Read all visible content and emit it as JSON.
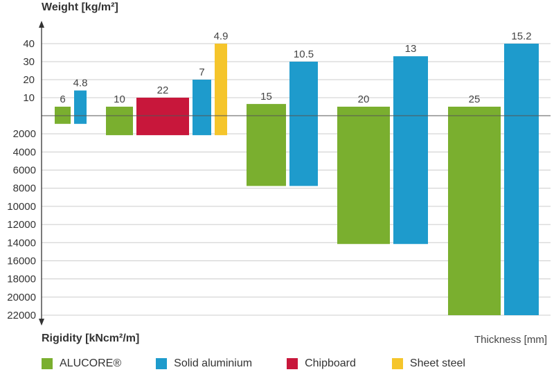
{
  "chart_data": {
    "type": "bar",
    "top_axis_label": "Weight [kg/m²]",
    "bottom_axis_label": "Rigidity [kNcm²/m]",
    "x_axis_label": "Thickness [mm]",
    "weight_ticks": [
      "10",
      "20",
      "30",
      "40"
    ],
    "rigidity_ticks": [
      "2000",
      "4000",
      "6000",
      "8000",
      "10000",
      "12000",
      "14000",
      "16000",
      "18000",
      "20000",
      "22000"
    ],
    "groups": [
      {
        "bars": [
          {
            "series": "ALUCORE®",
            "label": "6",
            "weight": 5,
            "rigidity": 900
          },
          {
            "series": "Solid aluminium",
            "label": "4.8",
            "weight": 14,
            "rigidity": 900
          }
        ]
      },
      {
        "bars": [
          {
            "series": "ALUCORE®",
            "label": "10",
            "weight": 5,
            "rigidity": 2150
          },
          {
            "series": "Chipboard",
            "label": "22",
            "weight": 10,
            "rigidity": 2150
          },
          {
            "series": "Solid aluminium",
            "label": "7",
            "weight": 20,
            "rigidity": 2150
          },
          {
            "series": "Sheet steel",
            "label": "4.9",
            "weight": 40,
            "rigidity": 2150
          }
        ]
      },
      {
        "bars": [
          {
            "series": "ALUCORE®",
            "label": "15",
            "weight": 6.5,
            "rigidity": 7750
          },
          {
            "series": "Solid aluminium",
            "label": "10.5",
            "weight": 30,
            "rigidity": 7750
          }
        ]
      },
      {
        "bars": [
          {
            "series": "ALUCORE®",
            "label": "20",
            "weight": 5,
            "rigidity": 14150
          },
          {
            "series": "Solid aluminium",
            "label": "13",
            "weight": 33,
            "rigidity": 14150
          }
        ]
      },
      {
        "bars": [
          {
            "series": "ALUCORE®",
            "label": "25",
            "weight": 5,
            "rigidity": 22000
          },
          {
            "series": "Solid aluminium",
            "label": "15.2",
            "weight": 40,
            "rigidity": 22000
          }
        ]
      }
    ],
    "legend": [
      {
        "name": "ALUCORE®",
        "color": "#7aaf2f"
      },
      {
        "name": "Solid aluminium",
        "color": "#1e9bcc"
      },
      {
        "name": "Chipboard",
        "color": "#c8173b"
      },
      {
        "name": "Sheet steel",
        "color": "#f5c52b"
      }
    ],
    "grid": true,
    "legend_position": "bottom"
  }
}
